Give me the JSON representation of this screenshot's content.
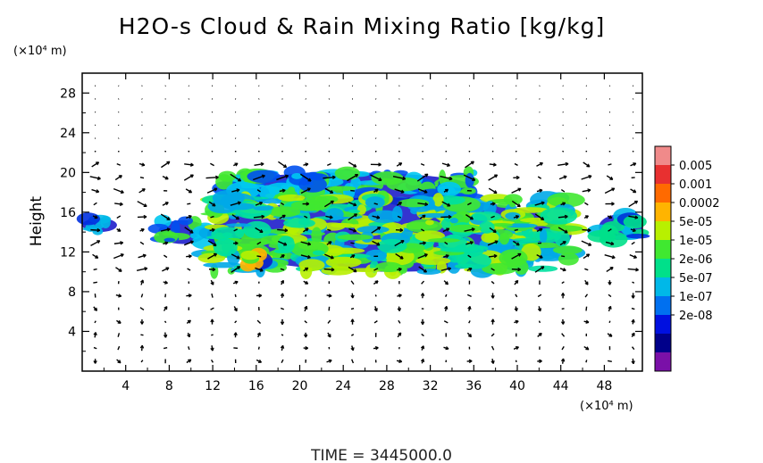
{
  "chart_data": {
    "type": "heatmap",
    "title": "H2O-s Cloud & Rain Mixing Ratio [kg/kg]",
    "ylabel": "Height",
    "y_unit": "(×10⁴ m)",
    "x_unit": "(×10⁴ m)",
    "xlim": [
      0,
      51.5
    ],
    "ylim": [
      0,
      30
    ],
    "x_ticks": [
      "4",
      "8",
      "12",
      "16",
      "20",
      "24",
      "28",
      "32",
      "36",
      "40",
      "44",
      "48"
    ],
    "y_ticks": [
      "4",
      "8",
      "12",
      "16",
      "20",
      "24",
      "28"
    ],
    "colorbar": {
      "labels": [
        "0.005",
        "0.001",
        "0.0002",
        "5e-05",
        "1e-05",
        "2e-06",
        "5e-07",
        "1e-07",
        "2e-08"
      ],
      "colors": [
        "#f08a8a",
        "#e83030",
        "#ff6a00",
        "#ffb400",
        "#b8f000",
        "#40e830",
        "#00e08a",
        "#00b8e8",
        "#0070f0",
        "#0010e0",
        "#00008a",
        "#7a10a8"
      ]
    },
    "wind_vectors": true,
    "cloud_regions": [
      {
        "x": [
          0,
          3.2
        ],
        "y": [
          14.0,
          15.4
        ],
        "level": "5e-07"
      },
      {
        "x": [
          7.0,
          11.5
        ],
        "y": [
          12.8,
          15.2
        ],
        "level": "2e-06"
      },
      {
        "x": [
          13.0,
          36.0
        ],
        "y": [
          17.0,
          20.0
        ],
        "level": "2e-06"
      },
      {
        "x": [
          11.5,
          45.0
        ],
        "y": [
          10.0,
          17.5
        ],
        "level": "1e-05"
      },
      {
        "x": [
          15.0,
          17.5
        ],
        "y": [
          10.2,
          12.0
        ],
        "level": "0.0002"
      },
      {
        "x": [
          47.5,
          51.5
        ],
        "y": [
          13.2,
          15.8
        ],
        "level": "5e-07"
      }
    ]
  },
  "footer": {
    "time_label": "TIME  =  3445000.0"
  }
}
